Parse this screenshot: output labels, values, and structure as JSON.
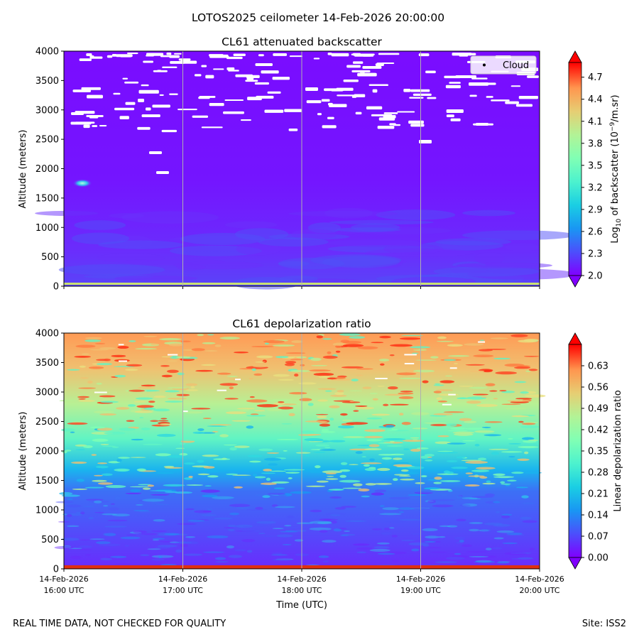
{
  "figure": {
    "title": "LOTOS2025 ceilometer 14-Feb-2026 20:00:00",
    "footer_left": "REAL TIME DATA, NOT CHECKED FOR QUALITY",
    "footer_right": "Site: ISS2",
    "x_axis_label": "Time (UTC)"
  },
  "colors": {
    "rainbow_low": "#8000ff",
    "rainbow_mid": "#80ffb4",
    "rainbow_high": "#ff0000",
    "gridline": "#b0b0b0",
    "cloud_mask": "#ffffff"
  },
  "chart_data": [
    {
      "type": "heatmap",
      "title": "CL61 attenuated backscatter",
      "ylabel": "Altitude (meters)",
      "y_ticks": [
        "0",
        "500",
        "1000",
        "1500",
        "2000",
        "2500",
        "3000",
        "3500",
        "4000"
      ],
      "ylim": [
        0,
        4000
      ],
      "x_ticks_date": [
        "14-Feb-2026",
        "14-Feb-2026",
        "14-Feb-2026",
        "14-Feb-2026",
        "14-Feb-2026"
      ],
      "x_ticks_time": [
        "16:00 UTC",
        "17:00 UTC",
        "18:00 UTC",
        "19:00 UTC",
        "20:00 UTC"
      ],
      "x_tick_labels_visible": false,
      "grid": "vertical lines at x ticks",
      "legend": {
        "placement": "top-right",
        "entries": [
          {
            "label": "Cloud",
            "marker": "black dot"
          }
        ]
      },
      "colorbar": {
        "label_main": "Log",
        "label_sub": "10",
        "label_rest": " of backscatter (10",
        "label_exp": "−9",
        "label_tail": "/m.sr)",
        "range": [
          2.0,
          4.9
        ],
        "ticks": [
          "2.0",
          "2.3",
          "2.6",
          "2.9",
          "3.2",
          "3.5",
          "3.8",
          "4.1",
          "4.4",
          "4.7"
        ],
        "extend": "both",
        "colormap": "rainbow"
      },
      "field_description_levels": {
        "background_low_altitude": 2.1,
        "near_surface_band": 3.8,
        "feature_near_1700m": 3.3
      }
    },
    {
      "type": "heatmap",
      "title": "CL61 depolarization ratio",
      "ylabel": "Altitude (meters)",
      "y_ticks": [
        "0",
        "500",
        "1000",
        "1500",
        "2000",
        "2500",
        "3000",
        "3500",
        "4000"
      ],
      "ylim": [
        0,
        4000
      ],
      "x_ticks_date": [
        "14-Feb-2026",
        "14-Feb-2026",
        "14-Feb-2026",
        "14-Feb-2026",
        "14-Feb-2026"
      ],
      "x_ticks_time": [
        "16:00 UTC",
        "17:00 UTC",
        "18:00 UTC",
        "19:00 UTC",
        "20:00 UTC"
      ],
      "x_tick_labels_visible": true,
      "grid": "vertical lines at x ticks",
      "colorbar": {
        "label": "Linear depolarization ratio",
        "range": [
          0.0,
          0.7
        ],
        "ticks": [
          "0.00",
          "0.07",
          "0.14",
          "0.21",
          "0.28",
          "0.35",
          "0.42",
          "0.49",
          "0.56",
          "0.63"
        ],
        "extend": "both",
        "colormap": "rainbow"
      },
      "field_description_levels": {
        "low_altitude_0_1500m": 0.06,
        "mid_altitude_1500_2500m": 0.33,
        "upper_altitude_2500_4000m": 0.48
      }
    }
  ]
}
